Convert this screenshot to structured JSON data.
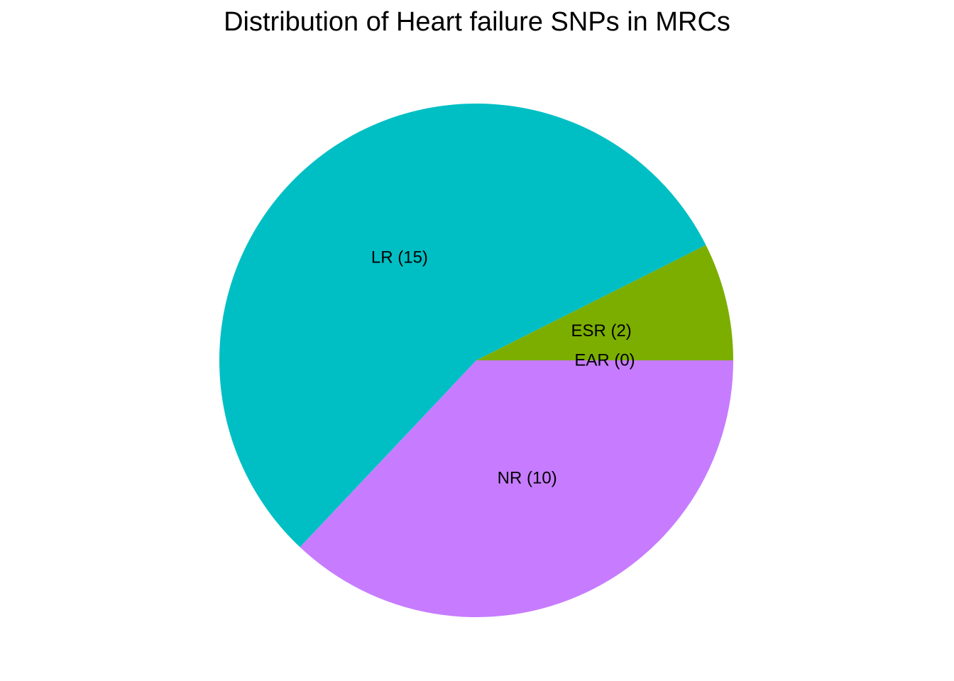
{
  "chart_data": {
    "type": "pie",
    "title": "Distribution of Heart failure SNPs in MRCs",
    "direction": "clockwise from 3 o'clock",
    "slices": [
      {
        "label": "EAR (0)",
        "category": "EAR",
        "value": 0,
        "color": "#F8766D"
      },
      {
        "label": "NR (10)",
        "category": "NR",
        "value": 10,
        "color": "#C77CFF"
      },
      {
        "label": "LR (15)",
        "category": "LR",
        "value": 15,
        "color": "#00BFC4"
      },
      {
        "label": "ESR (2)",
        "category": "ESR",
        "value": 2,
        "color": "#7CAE00"
      }
    ],
    "legend": "none",
    "grid": false
  }
}
